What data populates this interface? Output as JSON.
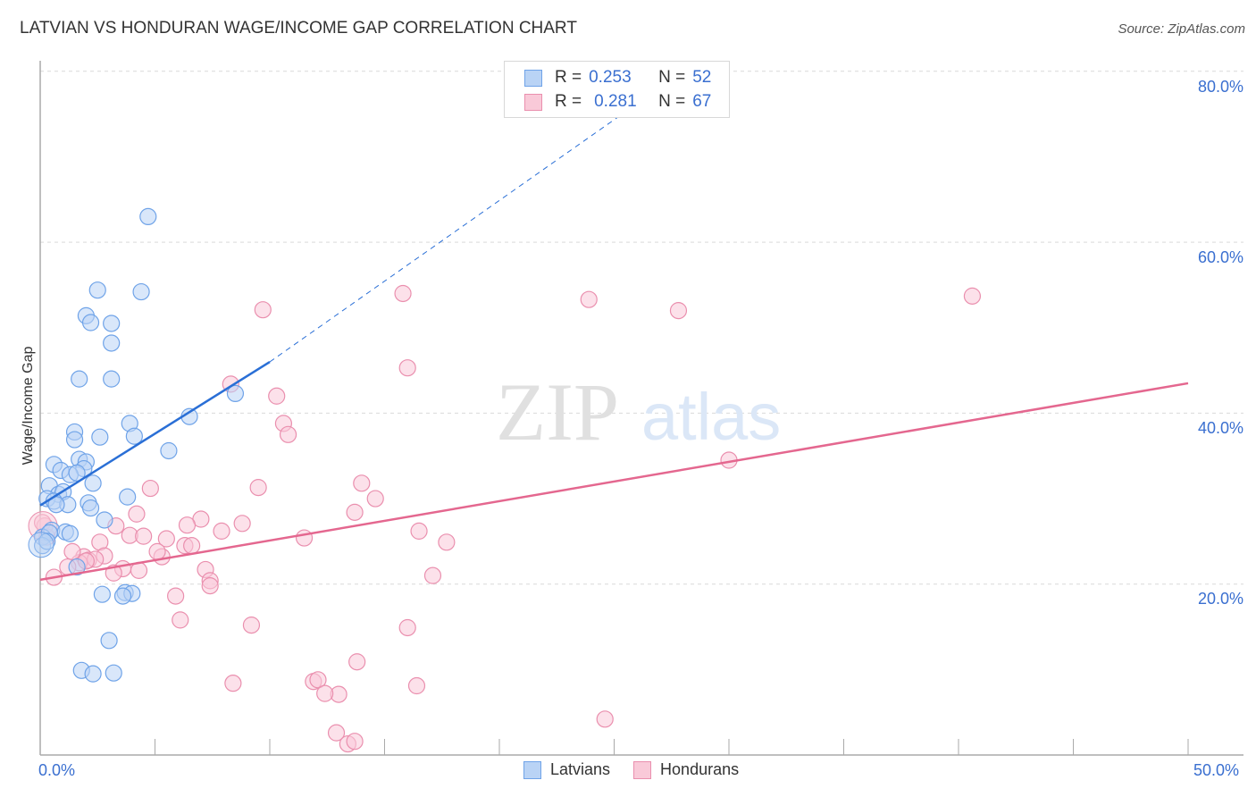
{
  "title": "LATVIAN VS HONDURAN WAGE/INCOME GAP CORRELATION CHART",
  "source": "Source: ZipAtlas.com",
  "watermark": {
    "zip": "ZIP",
    "atlas": "atlas"
  },
  "colors": {
    "latvians": "#6fa3e8",
    "latvians_fill": "#b9d3f5",
    "latvians_line": "#2a6fd6",
    "hondurans": "#ea8fae",
    "hondurans_fill": "#f9c9d8",
    "hondurans_line": "#e4678f",
    "tick_label": "#3a6fd0"
  },
  "legend": {
    "rows": [
      {
        "r_label": "R =",
        "r_value": "0.253",
        "n_label": "N =",
        "n_value": "52"
      },
      {
        "r_label": "R =",
        "r_value": "0.281",
        "n_label": "N =",
        "n_value": "67"
      }
    ]
  },
  "bottom_legend": [
    {
      "label": "Latvians"
    },
    {
      "label": "Hondurans"
    }
  ],
  "axes": {
    "y_label": "Wage/Income Gap",
    "y_ticks": [
      "80.0%",
      "60.0%",
      "40.0%",
      "20.0%"
    ],
    "x_ticks": [
      "0.0%",
      "50.0%"
    ]
  },
  "chart_data": {
    "type": "scatter",
    "title": "LATVIAN VS HONDURAN WAGE/INCOME GAP CORRELATION CHART",
    "xlabel": "",
    "ylabel": "Wage/Income Gap",
    "xlim": [
      0,
      50
    ],
    "ylim": [
      0,
      82
    ],
    "x_ticks": [
      "0.0%",
      "50.0%"
    ],
    "y_ticks": [
      "20.0%",
      "40.0%",
      "60.0%",
      "80.0%"
    ],
    "grid": "horizontal dashed",
    "legend_position": "top-center and bottom",
    "series": [
      {
        "name": "Latvians",
        "R": 0.253,
        "N": 52,
        "trend": {
          "x": [
            0,
            10
          ],
          "y": [
            29.2,
            46.0
          ],
          "extended_dashed_to": [
            28,
            80
          ]
        },
        "points": [
          [
            4.7,
            63.0
          ],
          [
            2.5,
            54.4
          ],
          [
            4.4,
            54.2
          ],
          [
            2.0,
            51.4
          ],
          [
            2.2,
            50.6
          ],
          [
            3.1,
            50.5
          ],
          [
            3.1,
            48.2
          ],
          [
            1.7,
            44.0
          ],
          [
            3.1,
            44.0
          ],
          [
            8.5,
            42.3
          ],
          [
            6.5,
            39.6
          ],
          [
            3.9,
            38.8
          ],
          [
            1.5,
            37.8
          ],
          [
            4.1,
            37.3
          ],
          [
            1.5,
            36.9
          ],
          [
            2.6,
            37.2
          ],
          [
            5.6,
            35.6
          ],
          [
            1.7,
            34.6
          ],
          [
            2.0,
            34.3
          ],
          [
            0.6,
            34.0
          ],
          [
            0.9,
            33.3
          ],
          [
            1.9,
            33.5
          ],
          [
            1.3,
            32.8
          ],
          [
            1.6,
            33.0
          ],
          [
            2.3,
            31.8
          ],
          [
            0.4,
            31.5
          ],
          [
            0.8,
            30.5
          ],
          [
            1.0,
            30.8
          ],
          [
            0.3,
            30.0
          ],
          [
            0.6,
            29.7
          ],
          [
            1.2,
            29.3
          ],
          [
            3.8,
            30.2
          ],
          [
            2.1,
            29.5
          ],
          [
            0.7,
            29.3
          ],
          [
            2.2,
            28.9
          ],
          [
            2.8,
            27.5
          ],
          [
            0.5,
            26.3
          ],
          [
            1.1,
            26.1
          ],
          [
            1.3,
            25.9
          ],
          [
            0.1,
            25.5
          ],
          [
            0.4,
            26.0
          ],
          [
            1.6,
            22.0
          ],
          [
            3.7,
            19.0
          ],
          [
            2.7,
            18.8
          ],
          [
            4.0,
            18.9
          ],
          [
            3.6,
            18.6
          ],
          [
            3.0,
            13.4
          ],
          [
            1.8,
            9.9
          ],
          [
            2.3,
            9.5
          ],
          [
            3.2,
            9.6
          ],
          [
            0.1,
            24.5
          ],
          [
            0.3,
            25.0
          ]
        ]
      },
      {
        "name": "Hondurans",
        "R": 0.281,
        "N": 67,
        "trend": {
          "x": [
            0,
            50
          ],
          "y": [
            20.5,
            43.5
          ]
        },
        "points": [
          [
            40.6,
            53.7
          ],
          [
            15.8,
            54.0
          ],
          [
            23.9,
            53.3
          ],
          [
            27.8,
            52.0
          ],
          [
            9.7,
            52.1
          ],
          [
            16.0,
            45.3
          ],
          [
            8.3,
            43.4
          ],
          [
            10.3,
            42.0
          ],
          [
            10.6,
            38.8
          ],
          [
            10.8,
            37.5
          ],
          [
            30.0,
            34.5
          ],
          [
            14.0,
            31.8
          ],
          [
            4.8,
            31.2
          ],
          [
            9.5,
            31.3
          ],
          [
            14.6,
            30.0
          ],
          [
            13.7,
            28.4
          ],
          [
            4.2,
            28.2
          ],
          [
            7.0,
            27.6
          ],
          [
            6.4,
            26.9
          ],
          [
            8.8,
            27.1
          ],
          [
            7.9,
            26.2
          ],
          [
            16.5,
            26.2
          ],
          [
            11.5,
            25.4
          ],
          [
            3.9,
            25.7
          ],
          [
            4.5,
            25.6
          ],
          [
            5.5,
            25.3
          ],
          [
            17.7,
            24.9
          ],
          [
            6.3,
            24.5
          ],
          [
            6.6,
            24.5
          ],
          [
            2.6,
            24.9
          ],
          [
            1.9,
            23.2
          ],
          [
            2.8,
            23.3
          ],
          [
            2.1,
            22.8
          ],
          [
            2.4,
            22.9
          ],
          [
            5.3,
            23.2
          ],
          [
            5.1,
            23.8
          ],
          [
            1.7,
            22.5
          ],
          [
            3.6,
            21.8
          ],
          [
            4.3,
            21.6
          ],
          [
            3.2,
            21.3
          ],
          [
            7.2,
            21.7
          ],
          [
            7.4,
            20.4
          ],
          [
            17.1,
            21.0
          ],
          [
            7.4,
            19.8
          ],
          [
            1.2,
            22.0
          ],
          [
            0.6,
            20.8
          ],
          [
            5.9,
            18.6
          ],
          [
            6.1,
            15.8
          ],
          [
            9.2,
            15.2
          ],
          [
            16.0,
            14.9
          ],
          [
            8.4,
            8.4
          ],
          [
            11.9,
            8.6
          ],
          [
            12.1,
            8.8
          ],
          [
            13.0,
            7.1
          ],
          [
            12.4,
            7.2
          ],
          [
            13.8,
            10.9
          ],
          [
            16.4,
            8.1
          ],
          [
            12.9,
            2.6
          ],
          [
            13.4,
            1.3
          ],
          [
            13.7,
            1.6
          ],
          [
            24.6,
            4.2
          ],
          [
            0.2,
            26.8
          ],
          [
            0.3,
            25.5
          ],
          [
            0.1,
            27.2
          ],
          [
            3.3,
            26.8
          ],
          [
            2.0,
            22.7
          ],
          [
            1.4,
            23.8
          ]
        ]
      }
    ]
  }
}
